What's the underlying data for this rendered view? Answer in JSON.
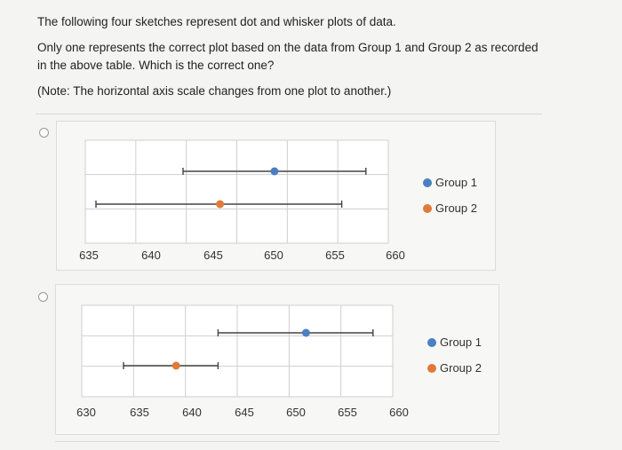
{
  "question": {
    "line1": "The following four sketches represent dot and whisker plots of data.",
    "line2": "Only one represents the correct plot based on the data from Group 1 and Group 2 as recorded in the above table. Which is the correct one?",
    "note": "(Note: The horizontal axis scale changes from one plot to another.)"
  },
  "colors": {
    "group1": "#4a7fc1",
    "group2": "#e07a3a",
    "whisker": "#444444",
    "grid": "#cfcfcf"
  },
  "options": [
    {
      "legend": [
        "Group 1",
        "Group 2"
      ],
      "chart_data": {
        "type": "dot-whisker",
        "xlim": [
          634,
          660
        ],
        "ticks": [
          635,
          640,
          645,
          650,
          655,
          660
        ],
        "series": [
          {
            "name": "Group 1",
            "min": 643,
            "mean": 650.5,
            "max": 658
          },
          {
            "name": "Group 2",
            "min": 636,
            "mean": 646,
            "max": 656
          }
        ]
      }
    },
    {
      "legend": [
        "Group 1",
        "Group 2"
      ],
      "chart_data": {
        "type": "dot-whisker",
        "xlim": [
          630,
          661
        ],
        "ticks": [
          630,
          635,
          640,
          645,
          650,
          655,
          660
        ],
        "series": [
          {
            "name": "Group 1",
            "min": 643,
            "mean": 651.5,
            "max": 658
          },
          {
            "name": "Group 2",
            "min": 634,
            "mean": 639,
            "max": 643
          }
        ]
      }
    }
  ]
}
